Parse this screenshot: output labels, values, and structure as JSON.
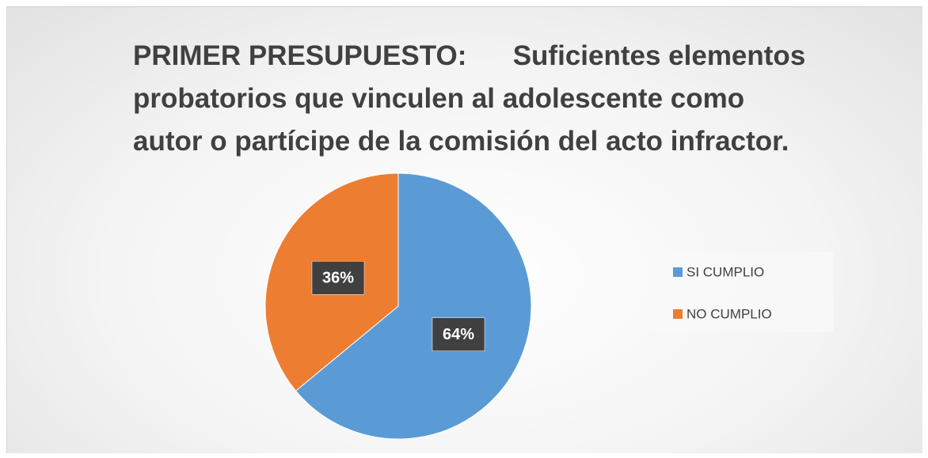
{
  "chart_data": {
    "type": "pie",
    "title": "PRIMER PRESUPUESTO:      Suficientes elementos\nprobatorios que vinculen al adolescente como\nautor o partícipe de la comisión del acto infractor.",
    "categories": [
      "SI CUMPLIO",
      "NO CUMPLIO"
    ],
    "values": [
      64,
      36
    ],
    "value_labels": [
      "64%",
      "36%"
    ],
    "colors": [
      "#5b9bd5",
      "#ed7d31"
    ],
    "legend": "right"
  }
}
